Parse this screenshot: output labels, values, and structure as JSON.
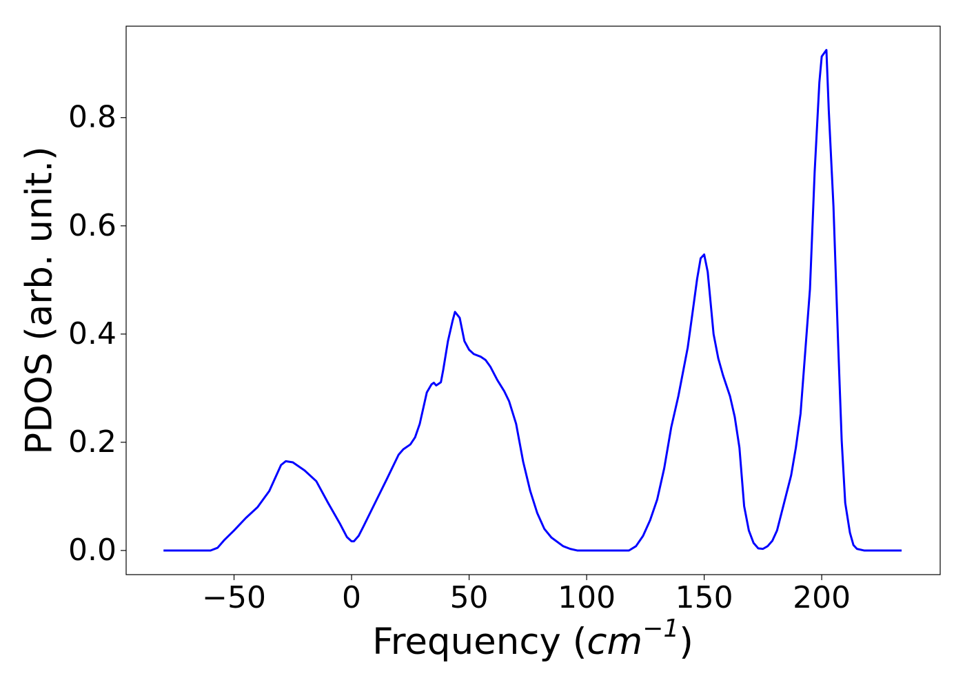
{
  "chart_data": {
    "type": "line",
    "ylabel": "PDOS (arb. unit.)",
    "xlabel": [
      "Frequency (",
      "cm",
      "−1",
      ")"
    ],
    "color": "#0000ff",
    "x": [
      -80,
      -60,
      -57,
      -54,
      -50,
      -45,
      -40,
      -35,
      -30,
      -28,
      -25,
      -20,
      -15,
      -10,
      -5,
      -2,
      0,
      1,
      3,
      5,
      10,
      15,
      20,
      22,
      25,
      27,
      29,
      32,
      34,
      35,
      36,
      38,
      39,
      41,
      43,
      44,
      46,
      48,
      50,
      52,
      55,
      57,
      59,
      62,
      65,
      67,
      70,
      73,
      76,
      79,
      82,
      85,
      90,
      93,
      96,
      118,
      121,
      124,
      127,
      130,
      133,
      136,
      139,
      141,
      143,
      145,
      147,
      148.5,
      150,
      151.5,
      154,
      156,
      158,
      161,
      163,
      165,
      167,
      169,
      171,
      173,
      175,
      177,
      179,
      181,
      184,
      187,
      189,
      191,
      193,
      195,
      197,
      199,
      200,
      202,
      203,
      205,
      207,
      208.5,
      210,
      212,
      213.5,
      215,
      218,
      234
    ],
    "values": [
      0,
      0,
      0.005,
      0.02,
      0.037,
      0.06,
      0.08,
      0.11,
      0.158,
      0.165,
      0.163,
      0.148,
      0.128,
      0.088,
      0.05,
      0.025,
      0.017,
      0.017,
      0.027,
      0.044,
      0.088,
      0.132,
      0.177,
      0.187,
      0.196,
      0.209,
      0.234,
      0.292,
      0.307,
      0.31,
      0.305,
      0.311,
      0.334,
      0.387,
      0.425,
      0.441,
      0.43,
      0.387,
      0.371,
      0.363,
      0.358,
      0.352,
      0.34,
      0.315,
      0.294,
      0.276,
      0.234,
      0.164,
      0.11,
      0.069,
      0.04,
      0.024,
      0.008,
      0.003,
      0,
      0,
      0.008,
      0.027,
      0.056,
      0.094,
      0.152,
      0.228,
      0.285,
      0.33,
      0.375,
      0.438,
      0.502,
      0.54,
      0.547,
      0.515,
      0.4,
      0.355,
      0.324,
      0.285,
      0.247,
      0.19,
      0.082,
      0.037,
      0.014,
      0.004,
      0.003,
      0.008,
      0.018,
      0.037,
      0.088,
      0.139,
      0.19,
      0.253,
      0.368,
      0.483,
      0.7,
      0.865,
      0.913,
      0.925,
      0.814,
      0.636,
      0.381,
      0.203,
      0.088,
      0.033,
      0.01,
      0.003,
      0,
      0
    ],
    "xlim": [
      -95.9,
      250.4
    ],
    "ylim": [
      -0.0446,
      0.969
    ],
    "xticks": [
      {
        "value": -50,
        "label": "−50"
      },
      0,
      50,
      100,
      150,
      200
    ],
    "yticks": [
      {
        "value": 0,
        "label": "0.0"
      },
      {
        "value": 0.2,
        "label": "0.2"
      },
      {
        "value": 0.4,
        "label": "0.4"
      },
      {
        "value": 0.6,
        "label": "0.6"
      },
      {
        "value": 0.8,
        "label": "0.8"
      }
    ]
  }
}
